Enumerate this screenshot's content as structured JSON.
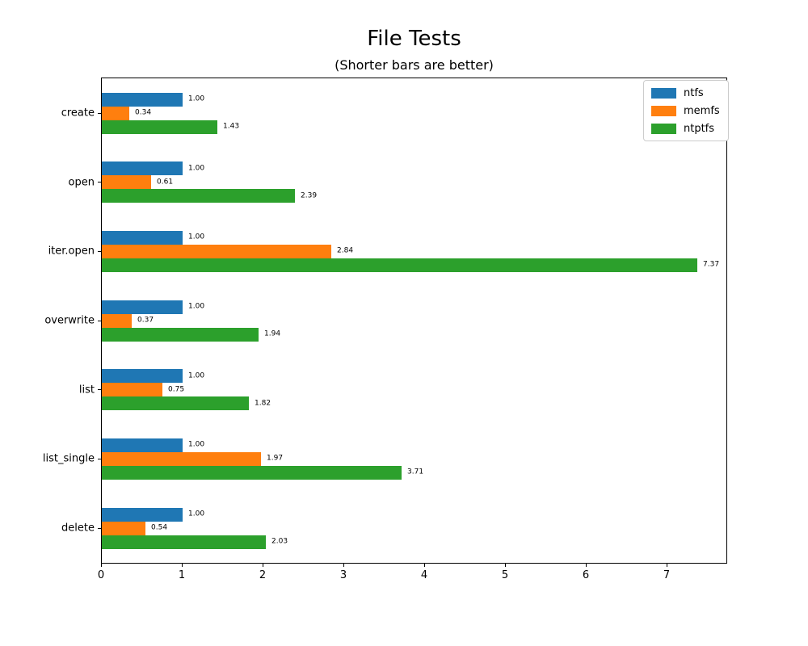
{
  "chart_data": {
    "type": "bar",
    "orientation": "horizontal",
    "title": "File Tests",
    "subtitle": "(Shorter bars are better)",
    "categories": [
      "create",
      "open",
      "iter.open",
      "overwrite",
      "list",
      "list_single",
      "delete"
    ],
    "series": [
      {
        "name": "ntfs",
        "color": "#1f77b4",
        "values": [
          1.0,
          1.0,
          1.0,
          1.0,
          1.0,
          1.0,
          1.0
        ]
      },
      {
        "name": "memfs",
        "color": "#ff7f0e",
        "values": [
          0.34,
          0.61,
          2.84,
          0.37,
          0.75,
          1.97,
          0.54
        ]
      },
      {
        "name": "ntptfs",
        "color": "#2ca02c",
        "values": [
          1.43,
          2.39,
          7.37,
          1.94,
          1.82,
          3.71,
          2.03
        ]
      }
    ],
    "value_labels": [
      [
        "1.00",
        "1.00",
        "1.00",
        "1.00",
        "1.00",
        "1.00",
        "1.00"
      ],
      [
        "0.34",
        "0.61",
        "2.84",
        "0.37",
        "0.75",
        "1.97",
        "0.54"
      ],
      [
        "1.43",
        "2.39",
        "7.37",
        "1.94",
        "1.82",
        "3.71",
        "2.03"
      ]
    ],
    "xticks": [
      "0",
      "1",
      "2",
      "3",
      "4",
      "5",
      "6",
      "7"
    ],
    "xlim": [
      0,
      7.75
    ],
    "grid": false,
    "legend": {
      "position": "upper right",
      "entries": [
        "ntfs",
        "memfs",
        "ntptfs"
      ]
    }
  }
}
